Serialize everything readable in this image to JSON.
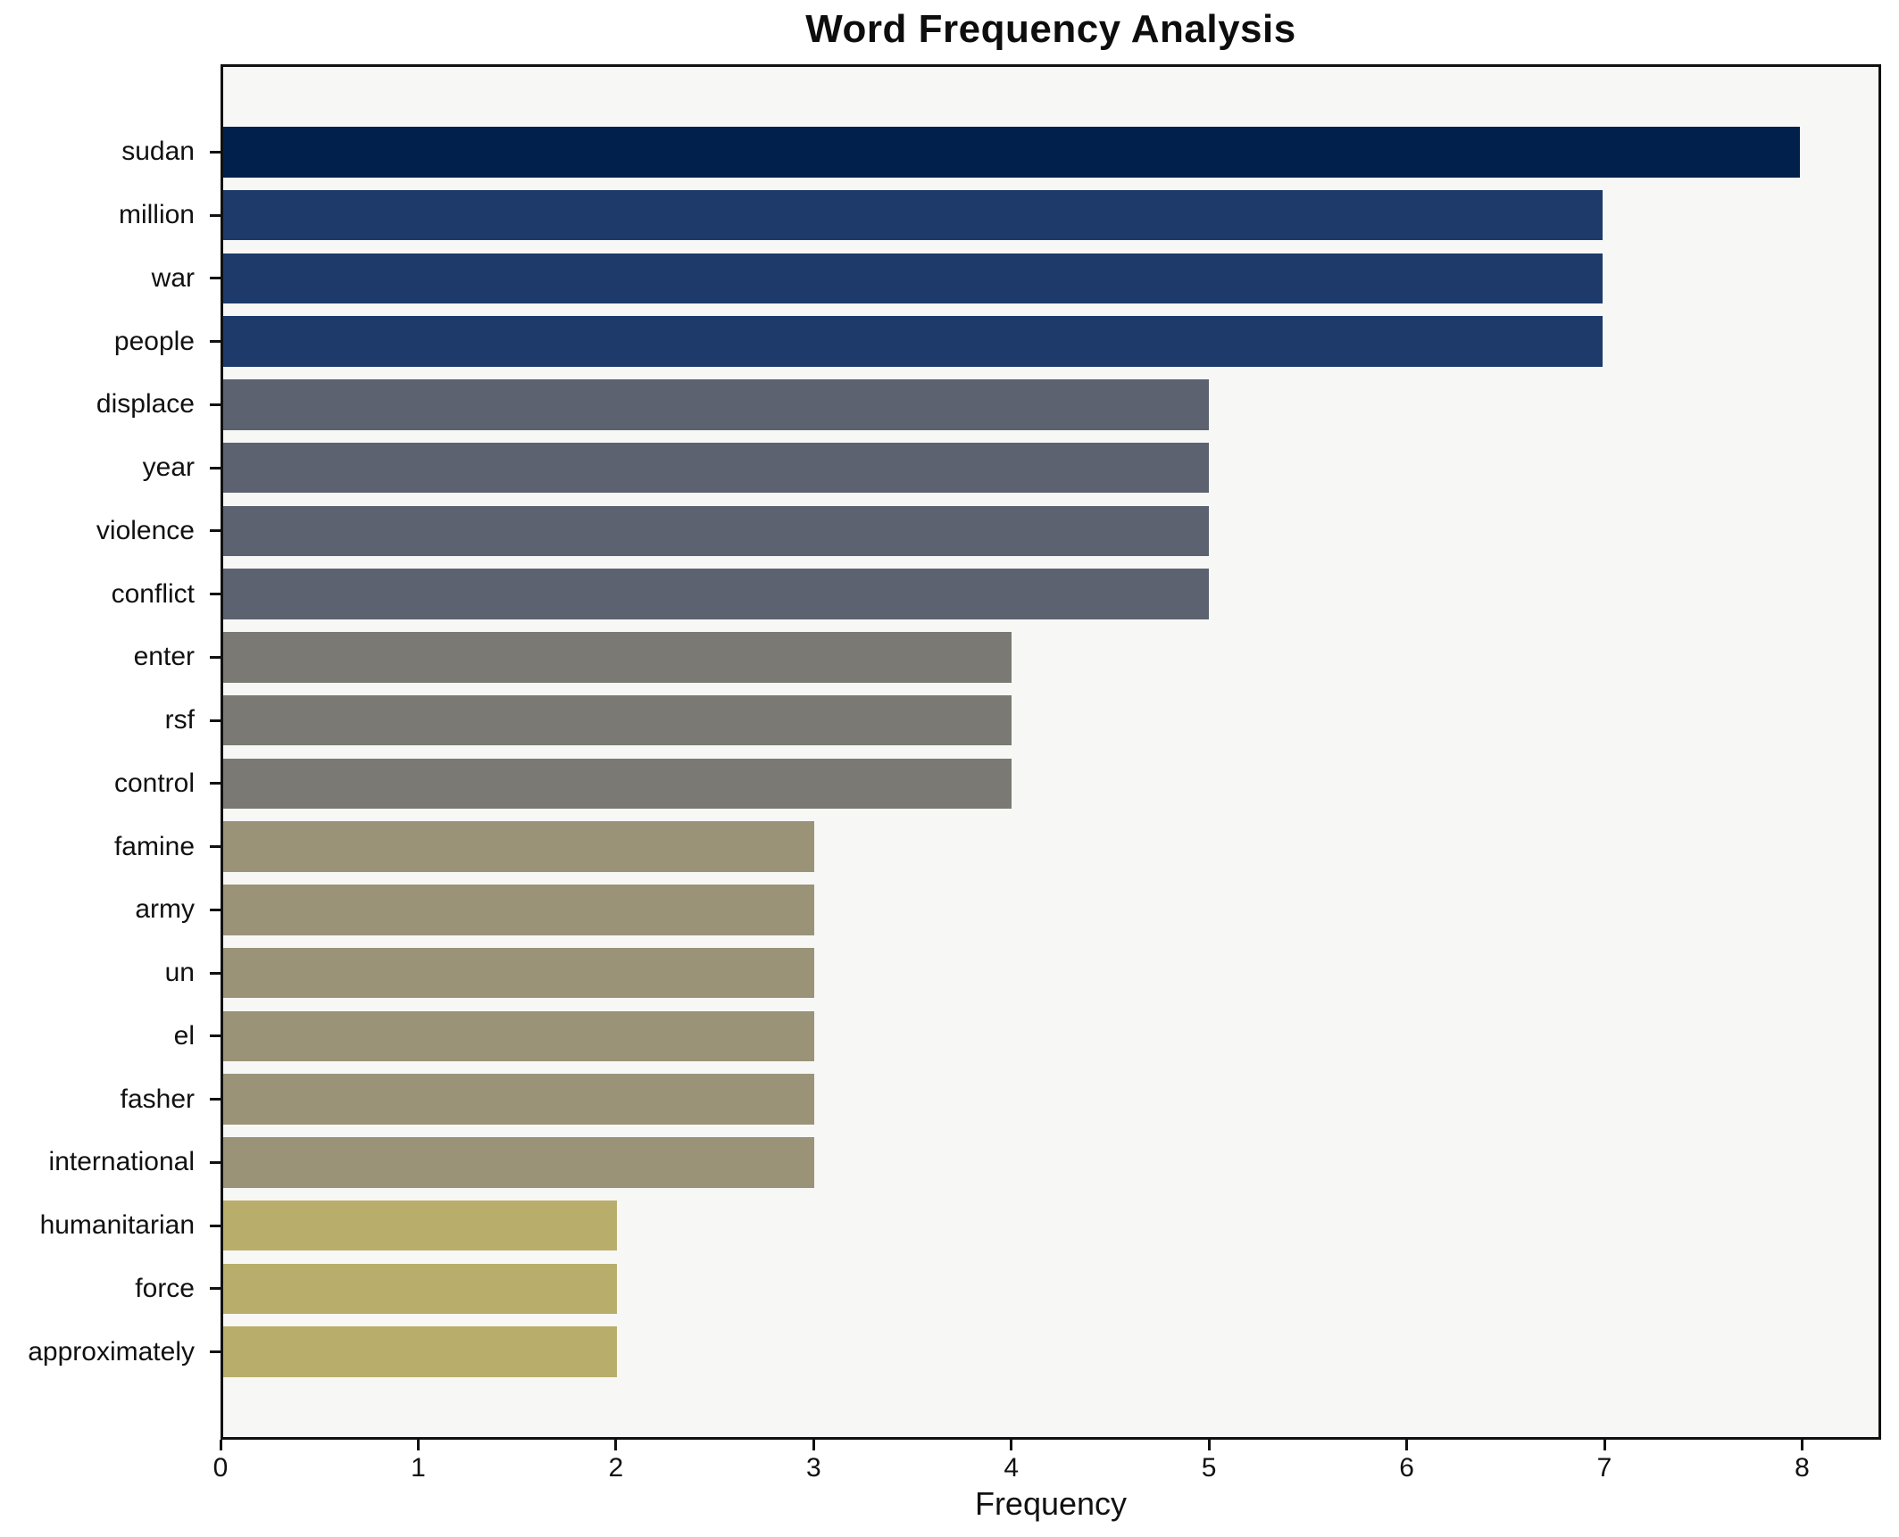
{
  "chart_data": {
    "type": "bar",
    "orientation": "horizontal",
    "title": "Word Frequency Analysis",
    "xlabel": "Frequency",
    "ylabel": "",
    "categories": [
      "sudan",
      "million",
      "war",
      "people",
      "displace",
      "year",
      "violence",
      "conflict",
      "enter",
      "rsf",
      "control",
      "famine",
      "army",
      "un",
      "el",
      "fasher",
      "international",
      "humanitarian",
      "force",
      "approximately"
    ],
    "values": [
      8,
      7,
      7,
      7,
      5,
      5,
      5,
      5,
      4,
      4,
      4,
      3,
      3,
      3,
      3,
      3,
      3,
      2,
      2,
      2
    ],
    "bar_colors": [
      "#01204b",
      "#1d3a6b",
      "#1d3a6b",
      "#1d3a6b",
      "#5d6270",
      "#5d6270",
      "#5d6270",
      "#5d6270",
      "#7a7973",
      "#7a7973",
      "#7a7973",
      "#9a9378",
      "#9a9378",
      "#9a9378",
      "#9a9378",
      "#9a9378",
      "#9a9378",
      "#b9ad6c",
      "#b9ad6c",
      "#b9ad6c"
    ],
    "xticks": [
      0,
      1,
      2,
      3,
      4,
      5,
      6,
      7,
      8
    ],
    "xlim": [
      0,
      8.4
    ],
    "grid": false,
    "legend": "none",
    "plot_background": "#f7f7f6",
    "figure_background": "#ffffff",
    "bar_width_fraction": 0.8
  }
}
